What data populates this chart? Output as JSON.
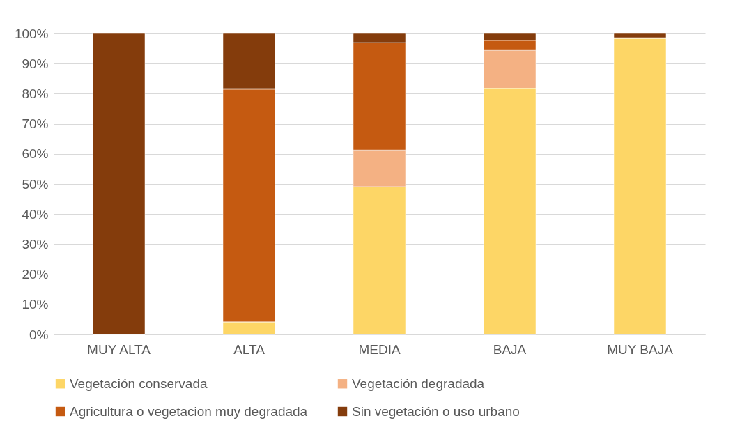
{
  "chart_data": {
    "type": "bar",
    "stacked": true,
    "categories": [
      "MUY ALTA",
      "ALTA",
      "MEDIA",
      "BAJA",
      "MUY BAJA"
    ],
    "series": [
      {
        "name": "Vegetación conservada",
        "color": "#fdd666",
        "values": [
          0,
          4.2,
          49.1,
          81.7,
          98.4
        ]
      },
      {
        "name": "Vegetación degradada",
        "color": "#f4b183",
        "values": [
          0,
          0,
          12.2,
          12.7,
          0
        ]
      },
      {
        "name": "Agricultura o vegetacion muy degradada",
        "color": "#c55a11",
        "values": [
          0,
          77.3,
          35.7,
          3.3,
          0.2
        ]
      },
      {
        "name": "Sin vegetación o uso urbano",
        "color": "#843c0c",
        "values": [
          100,
          18.5,
          3,
          2.3,
          1.4
        ]
      }
    ],
    "ylim": [
      0,
      100
    ],
    "yticks": [
      {
        "value": 0,
        "label": "0%"
      },
      {
        "value": 10,
        "label": "10%"
      },
      {
        "value": 20,
        "label": "20%"
      },
      {
        "value": 30,
        "label": "30%"
      },
      {
        "value": 40,
        "label": "40%"
      },
      {
        "value": 50,
        "label": "50%"
      },
      {
        "value": 60,
        "label": "60%"
      },
      {
        "value": 70,
        "label": "70%"
      },
      {
        "value": 80,
        "label": "80%"
      },
      {
        "value": 90,
        "label": "90%"
      },
      {
        "value": 100,
        "label": "100%"
      }
    ],
    "grid": "y",
    "legend": "bottom"
  }
}
